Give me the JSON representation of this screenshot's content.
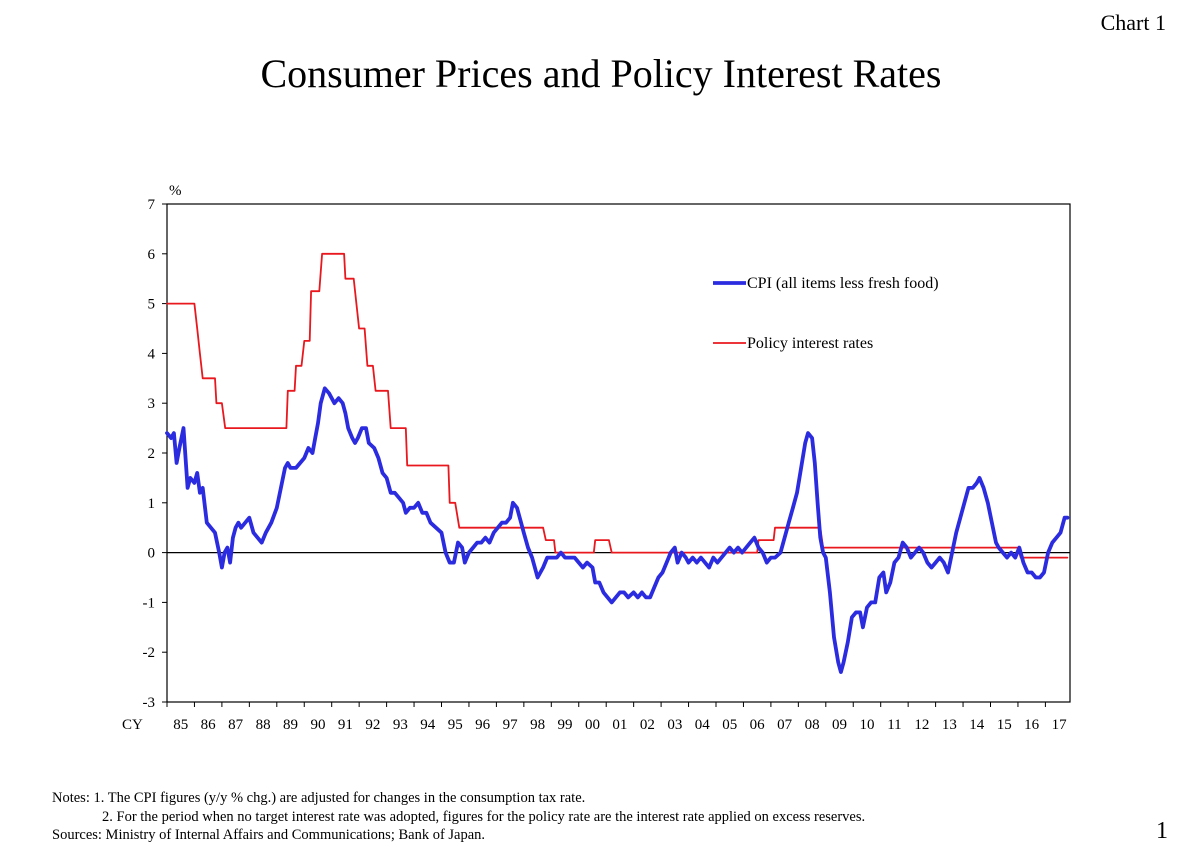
{
  "chart_label": "Chart 1",
  "notes": {
    "note1": "Notes: 1. The CPI figures (y/y % chg.) are adjusted for changes in the consumption tax rate.",
    "note2": "2. For the period when no target interest rate was adopted, figures for the policy rate are the interest rate applied on excess reserves.",
    "sources": "Sources: Ministry of Internal Affairs and Communications; Bank of Japan."
  },
  "page_number": "1",
  "chart_data": {
    "type": "line",
    "title": "Consumer Prices and Policy Interest Rates",
    "ylabel": "%",
    "xlabel_prefix": "CY",
    "ylim": [
      -3,
      7
    ],
    "yticks": [
      7,
      6,
      5,
      4,
      3,
      2,
      1,
      0,
      -1,
      -2,
      -3
    ],
    "ytick_labels": [
      "7",
      "6",
      "5",
      "4",
      "3",
      "2",
      "1",
      "0",
      "-1",
      "-2",
      "-3"
    ],
    "xlim": [
      1985,
      2017.8
    ],
    "xtick_labels": [
      "85",
      "86",
      "87",
      "88",
      "89",
      "90",
      "91",
      "92",
      "93",
      "94",
      "95",
      "96",
      "97",
      "98",
      "99",
      "00",
      "01",
      "02",
      "03",
      "04",
      "05",
      "06",
      "07",
      "08",
      "09",
      "10",
      "11",
      "12",
      "13",
      "14",
      "15",
      "16",
      "17"
    ],
    "zero_line": true,
    "legend_position": "top-right",
    "series": [
      {
        "name": "CPI (all items less fresh food)",
        "color": "#2B2BE0",
        "points": [
          [
            1985.0,
            2.4
          ],
          [
            1985.15,
            2.3
          ],
          [
            1985.25,
            2.4
          ],
          [
            1985.35,
            1.8
          ],
          [
            1985.45,
            2.1
          ],
          [
            1985.6,
            2.5
          ],
          [
            1985.75,
            1.3
          ],
          [
            1985.85,
            1.5
          ],
          [
            1986.0,
            1.4
          ],
          [
            1986.1,
            1.6
          ],
          [
            1986.2,
            1.2
          ],
          [
            1986.3,
            1.3
          ],
          [
            1986.45,
            0.6
          ],
          [
            1986.6,
            0.5
          ],
          [
            1986.75,
            0.4
          ],
          [
            1986.9,
            0.0
          ],
          [
            1987.0,
            -0.3
          ],
          [
            1987.1,
            0.0
          ],
          [
            1987.2,
            0.1
          ],
          [
            1987.3,
            -0.2
          ],
          [
            1987.4,
            0.3
          ],
          [
            1987.5,
            0.5
          ],
          [
            1987.6,
            0.6
          ],
          [
            1987.7,
            0.5
          ],
          [
            1987.85,
            0.6
          ],
          [
            1988.0,
            0.7
          ],
          [
            1988.15,
            0.4
          ],
          [
            1988.3,
            0.3
          ],
          [
            1988.45,
            0.2
          ],
          [
            1988.6,
            0.4
          ],
          [
            1988.8,
            0.6
          ],
          [
            1989.0,
            0.9
          ],
          [
            1989.15,
            1.3
          ],
          [
            1989.3,
            1.7
          ],
          [
            1989.4,
            1.8
          ],
          [
            1989.5,
            1.7
          ],
          [
            1989.7,
            1.7
          ],
          [
            1989.85,
            1.8
          ],
          [
            1990.0,
            1.9
          ],
          [
            1990.15,
            2.1
          ],
          [
            1990.3,
            2.0
          ],
          [
            1990.4,
            2.3
          ],
          [
            1990.5,
            2.6
          ],
          [
            1990.6,
            3.0
          ],
          [
            1990.75,
            3.3
          ],
          [
            1990.9,
            3.2
          ],
          [
            1991.0,
            3.1
          ],
          [
            1991.1,
            3.0
          ],
          [
            1991.25,
            3.1
          ],
          [
            1991.4,
            3.0
          ],
          [
            1991.5,
            2.8
          ],
          [
            1991.6,
            2.5
          ],
          [
            1991.75,
            2.3
          ],
          [
            1991.85,
            2.2
          ],
          [
            1991.95,
            2.3
          ],
          [
            1992.1,
            2.5
          ],
          [
            1992.25,
            2.5
          ],
          [
            1992.35,
            2.2
          ],
          [
            1992.55,
            2.1
          ],
          [
            1992.7,
            1.9
          ],
          [
            1992.85,
            1.6
          ],
          [
            1993.0,
            1.5
          ],
          [
            1993.15,
            1.2
          ],
          [
            1993.3,
            1.2
          ],
          [
            1993.45,
            1.1
          ],
          [
            1993.6,
            1.0
          ],
          [
            1993.7,
            0.8
          ],
          [
            1993.85,
            0.9
          ],
          [
            1994.0,
            0.9
          ],
          [
            1994.15,
            1.0
          ],
          [
            1994.3,
            0.8
          ],
          [
            1994.45,
            0.8
          ],
          [
            1994.6,
            0.6
          ],
          [
            1994.8,
            0.5
          ],
          [
            1995.0,
            0.4
          ],
          [
            1995.15,
            0.0
          ],
          [
            1995.3,
            -0.2
          ],
          [
            1995.45,
            -0.2
          ],
          [
            1995.6,
            0.2
          ],
          [
            1995.75,
            0.1
          ],
          [
            1995.85,
            -0.2
          ],
          [
            1996.0,
            0.0
          ],
          [
            1996.15,
            0.1
          ],
          [
            1996.3,
            0.2
          ],
          [
            1996.45,
            0.2
          ],
          [
            1996.6,
            0.3
          ],
          [
            1996.75,
            0.2
          ],
          [
            1996.9,
            0.4
          ],
          [
            1997.05,
            0.5
          ],
          [
            1997.2,
            0.6
          ],
          [
            1997.35,
            0.6
          ],
          [
            1997.5,
            0.7
          ],
          [
            1997.6,
            1.0
          ],
          [
            1997.75,
            0.9
          ],
          [
            1997.9,
            0.6
          ],
          [
            1998.0,
            0.4
          ],
          [
            1998.15,
            0.1
          ],
          [
            1998.3,
            -0.1
          ],
          [
            1998.5,
            -0.5
          ],
          [
            1998.7,
            -0.3
          ],
          [
            1998.85,
            -0.1
          ],
          [
            1999.0,
            -0.1
          ],
          [
            1999.2,
            -0.1
          ],
          [
            1999.35,
            0.0
          ],
          [
            1999.5,
            -0.1
          ],
          [
            1999.7,
            -0.1
          ],
          [
            1999.85,
            -0.1
          ],
          [
            2000.0,
            -0.2
          ],
          [
            2000.15,
            -0.3
          ],
          [
            2000.3,
            -0.2
          ],
          [
            2000.5,
            -0.3
          ],
          [
            2000.6,
            -0.6
          ],
          [
            2000.75,
            -0.6
          ],
          [
            2000.9,
            -0.8
          ],
          [
            2001.05,
            -0.9
          ],
          [
            2001.2,
            -1.0
          ],
          [
            2001.35,
            -0.9
          ],
          [
            2001.5,
            -0.8
          ],
          [
            2001.65,
            -0.8
          ],
          [
            2001.8,
            -0.9
          ],
          [
            2002.0,
            -0.8
          ],
          [
            2002.15,
            -0.9
          ],
          [
            2002.3,
            -0.8
          ],
          [
            2002.45,
            -0.9
          ],
          [
            2002.6,
            -0.9
          ],
          [
            2002.75,
            -0.7
          ],
          [
            2002.9,
            -0.5
          ],
          [
            2003.05,
            -0.4
          ],
          [
            2003.2,
            -0.2
          ],
          [
            2003.35,
            0.0
          ],
          [
            2003.5,
            0.1
          ],
          [
            2003.6,
            -0.2
          ],
          [
            2003.75,
            0.0
          ],
          [
            2003.9,
            -0.1
          ],
          [
            2004.0,
            -0.2
          ],
          [
            2004.15,
            -0.1
          ],
          [
            2004.3,
            -0.2
          ],
          [
            2004.45,
            -0.1
          ],
          [
            2004.6,
            -0.2
          ],
          [
            2004.75,
            -0.3
          ],
          [
            2004.9,
            -0.1
          ],
          [
            2005.05,
            -0.2
          ],
          [
            2005.2,
            -0.1
          ],
          [
            2005.35,
            0.0
          ],
          [
            2005.5,
            0.1
          ],
          [
            2005.65,
            0.0
          ],
          [
            2005.8,
            0.1
          ],
          [
            2005.95,
            0.0
          ],
          [
            2006.1,
            0.1
          ],
          [
            2006.25,
            0.2
          ],
          [
            2006.4,
            0.3
          ],
          [
            2006.55,
            0.1
          ],
          [
            2006.7,
            0.0
          ],
          [
            2006.85,
            -0.2
          ],
          [
            2007.0,
            -0.1
          ],
          [
            2007.15,
            -0.1
          ],
          [
            2007.35,
            0.0
          ],
          [
            2007.5,
            0.3
          ],
          [
            2007.65,
            0.6
          ],
          [
            2007.8,
            0.9
          ],
          [
            2007.95,
            1.2
          ],
          [
            2008.1,
            1.7
          ],
          [
            2008.25,
            2.2
          ],
          [
            2008.35,
            2.4
          ],
          [
            2008.5,
            2.3
          ],
          [
            2008.6,
            1.8
          ],
          [
            2008.7,
            1.0
          ],
          [
            2008.8,
            0.3
          ],
          [
            2008.9,
            0.0
          ],
          [
            2009.0,
            -0.1
          ],
          [
            2009.15,
            -0.8
          ],
          [
            2009.3,
            -1.7
          ],
          [
            2009.45,
            -2.2
          ],
          [
            2009.55,
            -2.4
          ],
          [
            2009.65,
            -2.2
          ],
          [
            2009.8,
            -1.8
          ],
          [
            2009.95,
            -1.3
          ],
          [
            2010.1,
            -1.2
          ],
          [
            2010.25,
            -1.2
          ],
          [
            2010.35,
            -1.5
          ],
          [
            2010.5,
            -1.1
          ],
          [
            2010.65,
            -1.0
          ],
          [
            2010.8,
            -1.0
          ],
          [
            2010.95,
            -0.5
          ],
          [
            2011.1,
            -0.4
          ],
          [
            2011.2,
            -0.8
          ],
          [
            2011.35,
            -0.6
          ],
          [
            2011.5,
            -0.2
          ],
          [
            2011.65,
            -0.1
          ],
          [
            2011.8,
            0.2
          ],
          [
            2011.95,
            0.1
          ],
          [
            2012.1,
            -0.1
          ],
          [
            2012.25,
            0.0
          ],
          [
            2012.4,
            0.1
          ],
          [
            2012.55,
            0.0
          ],
          [
            2012.7,
            -0.2
          ],
          [
            2012.85,
            -0.3
          ],
          [
            2013.0,
            -0.2
          ],
          [
            2013.15,
            -0.1
          ],
          [
            2013.3,
            -0.2
          ],
          [
            2013.45,
            -0.4
          ],
          [
            2013.6,
            0.0
          ],
          [
            2013.75,
            0.4
          ],
          [
            2013.9,
            0.7
          ],
          [
            2014.05,
            1.0
          ],
          [
            2014.2,
            1.3
          ],
          [
            2014.35,
            1.3
          ],
          [
            2014.5,
            1.4
          ],
          [
            2014.6,
            1.5
          ],
          [
            2014.75,
            1.3
          ],
          [
            2014.9,
            1.0
          ],
          [
            2015.05,
            0.6
          ],
          [
            2015.2,
            0.2
          ],
          [
            2015.3,
            0.1
          ],
          [
            2015.45,
            0.0
          ],
          [
            2015.6,
            -0.1
          ],
          [
            2015.75,
            0.0
          ],
          [
            2015.9,
            -0.1
          ],
          [
            2016.05,
            0.1
          ],
          [
            2016.2,
            -0.2
          ],
          [
            2016.35,
            -0.4
          ],
          [
            2016.5,
            -0.4
          ],
          [
            2016.65,
            -0.5
          ],
          [
            2016.8,
            -0.5
          ],
          [
            2016.95,
            -0.4
          ],
          [
            2017.1,
            0.0
          ],
          [
            2017.25,
            0.2
          ],
          [
            2017.4,
            0.3
          ],
          [
            2017.55,
            0.4
          ],
          [
            2017.7,
            0.7
          ],
          [
            2017.8,
            0.7
          ]
        ]
      },
      {
        "name": "Policy interest rates",
        "color": "#E8181E",
        "points": [
          [
            1985.0,
            5.0
          ],
          [
            1986.0,
            5.0
          ],
          [
            1986.1,
            4.5
          ],
          [
            1986.2,
            4.0
          ],
          [
            1986.3,
            3.5
          ],
          [
            1986.75,
            3.5
          ],
          [
            1986.8,
            3.0
          ],
          [
            1987.0,
            3.0
          ],
          [
            1987.12,
            2.5
          ],
          [
            1989.35,
            2.5
          ],
          [
            1989.4,
            3.25
          ],
          [
            1989.65,
            3.25
          ],
          [
            1989.7,
            3.75
          ],
          [
            1989.9,
            3.75
          ],
          [
            1990.0,
            4.25
          ],
          [
            1990.2,
            4.25
          ],
          [
            1990.25,
            5.25
          ],
          [
            1990.55,
            5.25
          ],
          [
            1990.65,
            6.0
          ],
          [
            1991.45,
            6.0
          ],
          [
            1991.5,
            5.5
          ],
          [
            1991.8,
            5.5
          ],
          [
            1991.9,
            5.0
          ],
          [
            1992.0,
            4.5
          ],
          [
            1992.2,
            4.5
          ],
          [
            1992.3,
            3.75
          ],
          [
            1992.5,
            3.75
          ],
          [
            1992.6,
            3.25
          ],
          [
            1993.05,
            3.25
          ],
          [
            1993.15,
            2.5
          ],
          [
            1993.7,
            2.5
          ],
          [
            1993.75,
            1.75
          ],
          [
            1995.25,
            1.75
          ],
          [
            1995.3,
            1.0
          ],
          [
            1995.5,
            1.0
          ],
          [
            1995.65,
            0.5
          ],
          [
            1998.7,
            0.5
          ],
          [
            1998.8,
            0.25
          ],
          [
            1999.1,
            0.25
          ],
          [
            1999.15,
            0.0
          ],
          [
            2000.55,
            0.0
          ],
          [
            2000.6,
            0.25
          ],
          [
            2001.1,
            0.25
          ],
          [
            2001.2,
            0.0
          ],
          [
            2006.5,
            0.0
          ],
          [
            2006.55,
            0.25
          ],
          [
            2007.1,
            0.25
          ],
          [
            2007.15,
            0.5
          ],
          [
            2008.8,
            0.5
          ],
          [
            2008.9,
            0.1
          ],
          [
            2016.0,
            0.1
          ],
          [
            2016.1,
            -0.1
          ],
          [
            2017.8,
            -0.1
          ]
        ]
      }
    ]
  }
}
